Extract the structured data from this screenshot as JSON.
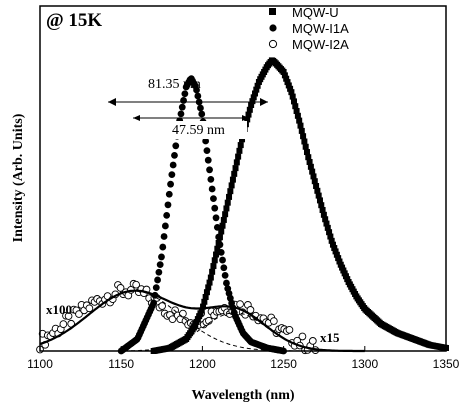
{
  "chart_data": {
    "type": "scatter",
    "title": "@ 15K",
    "xlabel": "Wavelength (nm)",
    "ylabel": "Intensity (Arb. Units)",
    "xlim": [
      1100,
      1350
    ],
    "ylim": [
      0,
      1.15
    ],
    "x_ticks": [
      "1100",
      "1150",
      "1200",
      "1250",
      "1300",
      "1350"
    ],
    "grid": false,
    "legend_position": "top-right",
    "legend": [
      {
        "label": "MQW-U",
        "marker": "filled-square"
      },
      {
        "label": "MQW-I1A",
        "marker": "filled-circle"
      },
      {
        "label": "MQW-I2A",
        "marker": "open-circle"
      }
    ],
    "annotations": {
      "fwhm_u": "81.35 nm",
      "fwhm_i1a": "47.59 nm",
      "scale_i2a": "x100",
      "scale_i1a": "x15"
    },
    "series": [
      {
        "name": "MQW-U",
        "marker": "filled-square",
        "x": [
          1170,
          1180,
          1190,
          1195,
          1200,
          1205,
          1210,
          1215,
          1220,
          1225,
          1230,
          1235,
          1240,
          1243,
          1245,
          1250,
          1255,
          1260,
          1265,
          1270,
          1275,
          1280,
          1285,
          1290,
          1295,
          1300,
          1310,
          1320,
          1330,
          1340,
          1350
        ],
        "y": [
          0.0,
          0.01,
          0.04,
          0.08,
          0.14,
          0.24,
          0.36,
          0.48,
          0.6,
          0.72,
          0.82,
          0.9,
          0.95,
          0.97,
          0.96,
          0.93,
          0.86,
          0.76,
          0.65,
          0.55,
          0.45,
          0.36,
          0.29,
          0.23,
          0.18,
          0.14,
          0.09,
          0.06,
          0.04,
          0.02,
          0.01
        ]
      },
      {
        "name": "MQW-I1A",
        "marker": "filled-circle",
        "x": [
          1150,
          1160,
          1170,
          1175,
          1180,
          1185,
          1190,
          1193,
          1196,
          1200,
          1205,
          1210,
          1215,
          1220,
          1225,
          1230,
          1240,
          1250
        ],
        "y": [
          0.0,
          0.04,
          0.16,
          0.32,
          0.54,
          0.74,
          0.88,
          0.91,
          0.88,
          0.78,
          0.58,
          0.38,
          0.22,
          0.12,
          0.06,
          0.03,
          0.01,
          0.0
        ]
      },
      {
        "name": "MQW-I2A",
        "marker": "open-circle",
        "x": [
          1100,
          1110,
          1120,
          1130,
          1140,
          1150,
          1160,
          1170,
          1180,
          1190,
          1200,
          1210,
          1220,
          1230,
          1240,
          1250,
          1260,
          1270
        ],
        "y": [
          0.03,
          0.07,
          0.11,
          0.15,
          0.18,
          0.2,
          0.2,
          0.17,
          0.13,
          0.1,
          0.11,
          0.14,
          0.15,
          0.14,
          0.1,
          0.06,
          0.03,
          0.01
        ]
      }
    ]
  }
}
